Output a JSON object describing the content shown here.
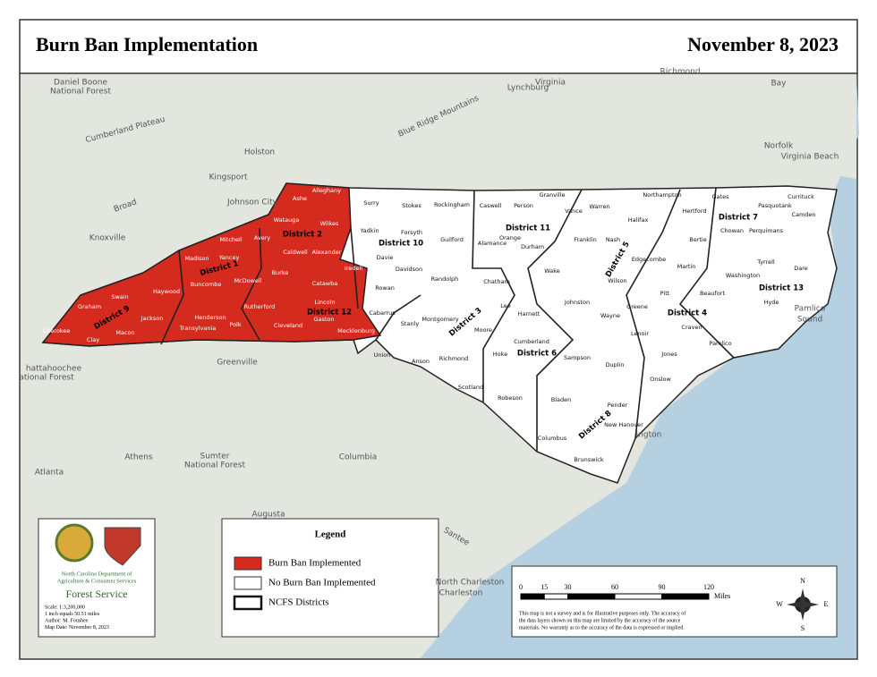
{
  "header": {
    "title": "Burn Ban Implementation",
    "date": "November 8, 2023"
  },
  "map": {
    "counties": [
      "Ashe",
      "Alleghany",
      "Watauga",
      "Wilkes",
      "Avery",
      "Mitchell",
      "Yancey",
      "Caldwell",
      "Alexander",
      "Madison",
      "Burke",
      "Iredell",
      "Buncombe",
      "McDowell",
      "Catawba",
      "Haywood",
      "Swain",
      "Graham",
      "Jackson",
      "Henderson",
      "Rutherford",
      "Lincoln",
      "Polk",
      "Transylvania",
      "Cherokee",
      "Clay",
      "Macon",
      "Cleveland",
      "Gaston",
      "Mecklenburg",
      "Surry",
      "Stokes",
      "Rockingham",
      "Caswell",
      "Person",
      "Granville",
      "Warren",
      "Northampton",
      "Gates",
      "Pasquotank",
      "Currituck",
      "Camden",
      "Hertford",
      "Perquimans",
      "Chowan",
      "Vance",
      "Halifax",
      "Bertie",
      "Yadkin",
      "Forsyth",
      "Guilford",
      "Alamance",
      "Orange",
      "Durham",
      "Franklin",
      "Nash",
      "Edgecombe",
      "Martin",
      "Washington",
      "Tyrrell",
      "Dare",
      "Hyde",
      "Davie",
      "Davidson",
      "Randolph",
      "Chatham",
      "Wake",
      "Wilson",
      "Rowan",
      "Pitt",
      "Beaufort",
      "Cabarrus",
      "Stanly",
      "Montgomery",
      "Moore",
      "Lee",
      "Harnett",
      "Johnston",
      "Wayne",
      "Greene",
      "Lenoir",
      "Craven",
      "Pamlico",
      "Union",
      "Anson",
      "Richmond",
      "Scotland",
      "Hoke",
      "Cumberland",
      "Sampson",
      "Duplin",
      "Jones",
      "Onslow",
      "Robeson",
      "Bladen",
      "Pender",
      "New Hanover",
      "Columbus",
      "Brunswick"
    ],
    "districts": [
      "District 1",
      "District 2",
      "District 3",
      "District 4",
      "District 5",
      "District 6",
      "District 7",
      "District 8",
      "District 9",
      "District 10",
      "District 11",
      "District 12",
      "District 13"
    ],
    "places": [
      "Daniel Boone",
      "National Forest",
      "Cumberland Plateau",
      "Lynchburg",
      "Virginia",
      "Blue Ridge Mountains",
      "Richmond",
      "Norfolk",
      "Virginia Beach",
      "Kingsport",
      "Johnson City",
      "Knoxville",
      "Greenville",
      "Athens",
      "Atlanta",
      "Sumter",
      "National Forest",
      "Columbia",
      "Augusta",
      "North Charleston",
      "Charleston",
      "hattahoochee",
      "ational Forest",
      "Holston",
      "Broad",
      "Santee",
      "Pamlico",
      "Sound",
      "Bay",
      "ington"
    ]
  },
  "legend": {
    "title": "Legend",
    "items": [
      "Burn Ban Implemented",
      "No Burn Ban Implemented",
      "NCFS Districts"
    ]
  },
  "agency": {
    "name": [
      "North Carolina Department of",
      "Agriculture & Consumer Services"
    ],
    "unit": "Forest Service",
    "notes": [
      "Scale: 1:3,200,000",
      "1 inch equals 50.51 miles",
      "Author: M. Foushee",
      "Map Date: November 8, 2023"
    ]
  },
  "scale_bar": {
    "ticks": [
      0,
      15,
      30,
      60,
      90,
      120
    ],
    "unit": "Miles"
  },
  "disclaimer": [
    "This map is not a survey and is for illustrative purposes only. The accuracy of",
    "the data layers shown on this map are limited by the accuracy of the source",
    "materials. No warranty as to the accuracy of the data is expressed or implied."
  ],
  "compass": {
    "n": "N",
    "e": "E",
    "s": "S",
    "w": "W"
  }
}
